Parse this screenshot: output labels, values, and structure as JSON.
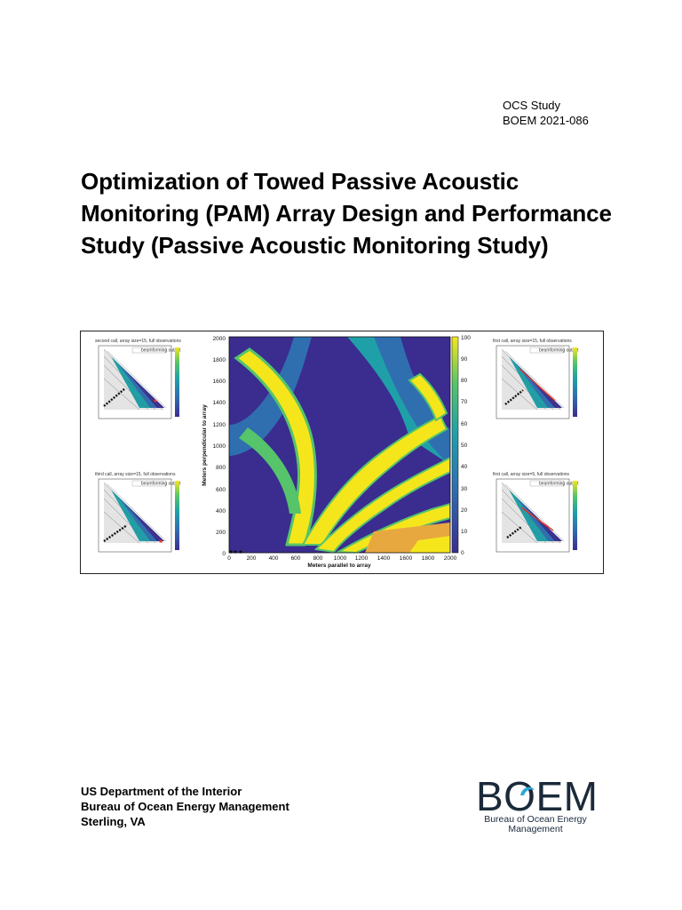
{
  "header": {
    "study_line1": "OCS Study",
    "study_line2": "BOEM 2021-086"
  },
  "title": "Optimization of Towed Passive Acoustic Monitoring (PAM) Array Design and Performance Study (Passive Acoustic Monitoring Study)",
  "figure": {
    "main_plot": {
      "xlabel": "Meters parallel to array",
      "ylabel": "Meters perpendicular to array",
      "x_ticks": [
        "0",
        "200",
        "400",
        "600",
        "800",
        "1000",
        "1200",
        "1400",
        "1600",
        "1800",
        "2000"
      ],
      "y_ticks": [
        "0",
        "200",
        "400",
        "600",
        "800",
        "1000",
        "1200",
        "1400",
        "1600",
        "1800",
        "2000"
      ],
      "colorbar_ticks": [
        "0",
        "10",
        "20",
        "30",
        "40",
        "50",
        "60",
        "70",
        "80",
        "90",
        "100"
      ]
    },
    "insets": [
      {
        "title": "second call, array size=15, full observations",
        "legend": "beamforming output"
      },
      {
        "title": "first call, array size=15, full observations",
        "legend": "beamforming output"
      },
      {
        "title": "third call, array size=15, full observations",
        "legend": "beamforming output"
      },
      {
        "title": "first call, array size=5, full observations",
        "legend": "beamforming output"
      }
    ],
    "colors": {
      "low": "#3b2c8f",
      "mid": "#1fa0a8",
      "high": "#f5e61c"
    }
  },
  "footer": {
    "agency_line1": "US Department of the Interior",
    "agency_line2": "Bureau of Ocean Energy Management",
    "agency_line3": "Sterling, VA"
  },
  "logo": {
    "wordmark": "BOEM",
    "subtitle_line1": "Bureau of Ocean Energy",
    "subtitle_line2": "Management",
    "accent_color": "#2aa8d8"
  }
}
